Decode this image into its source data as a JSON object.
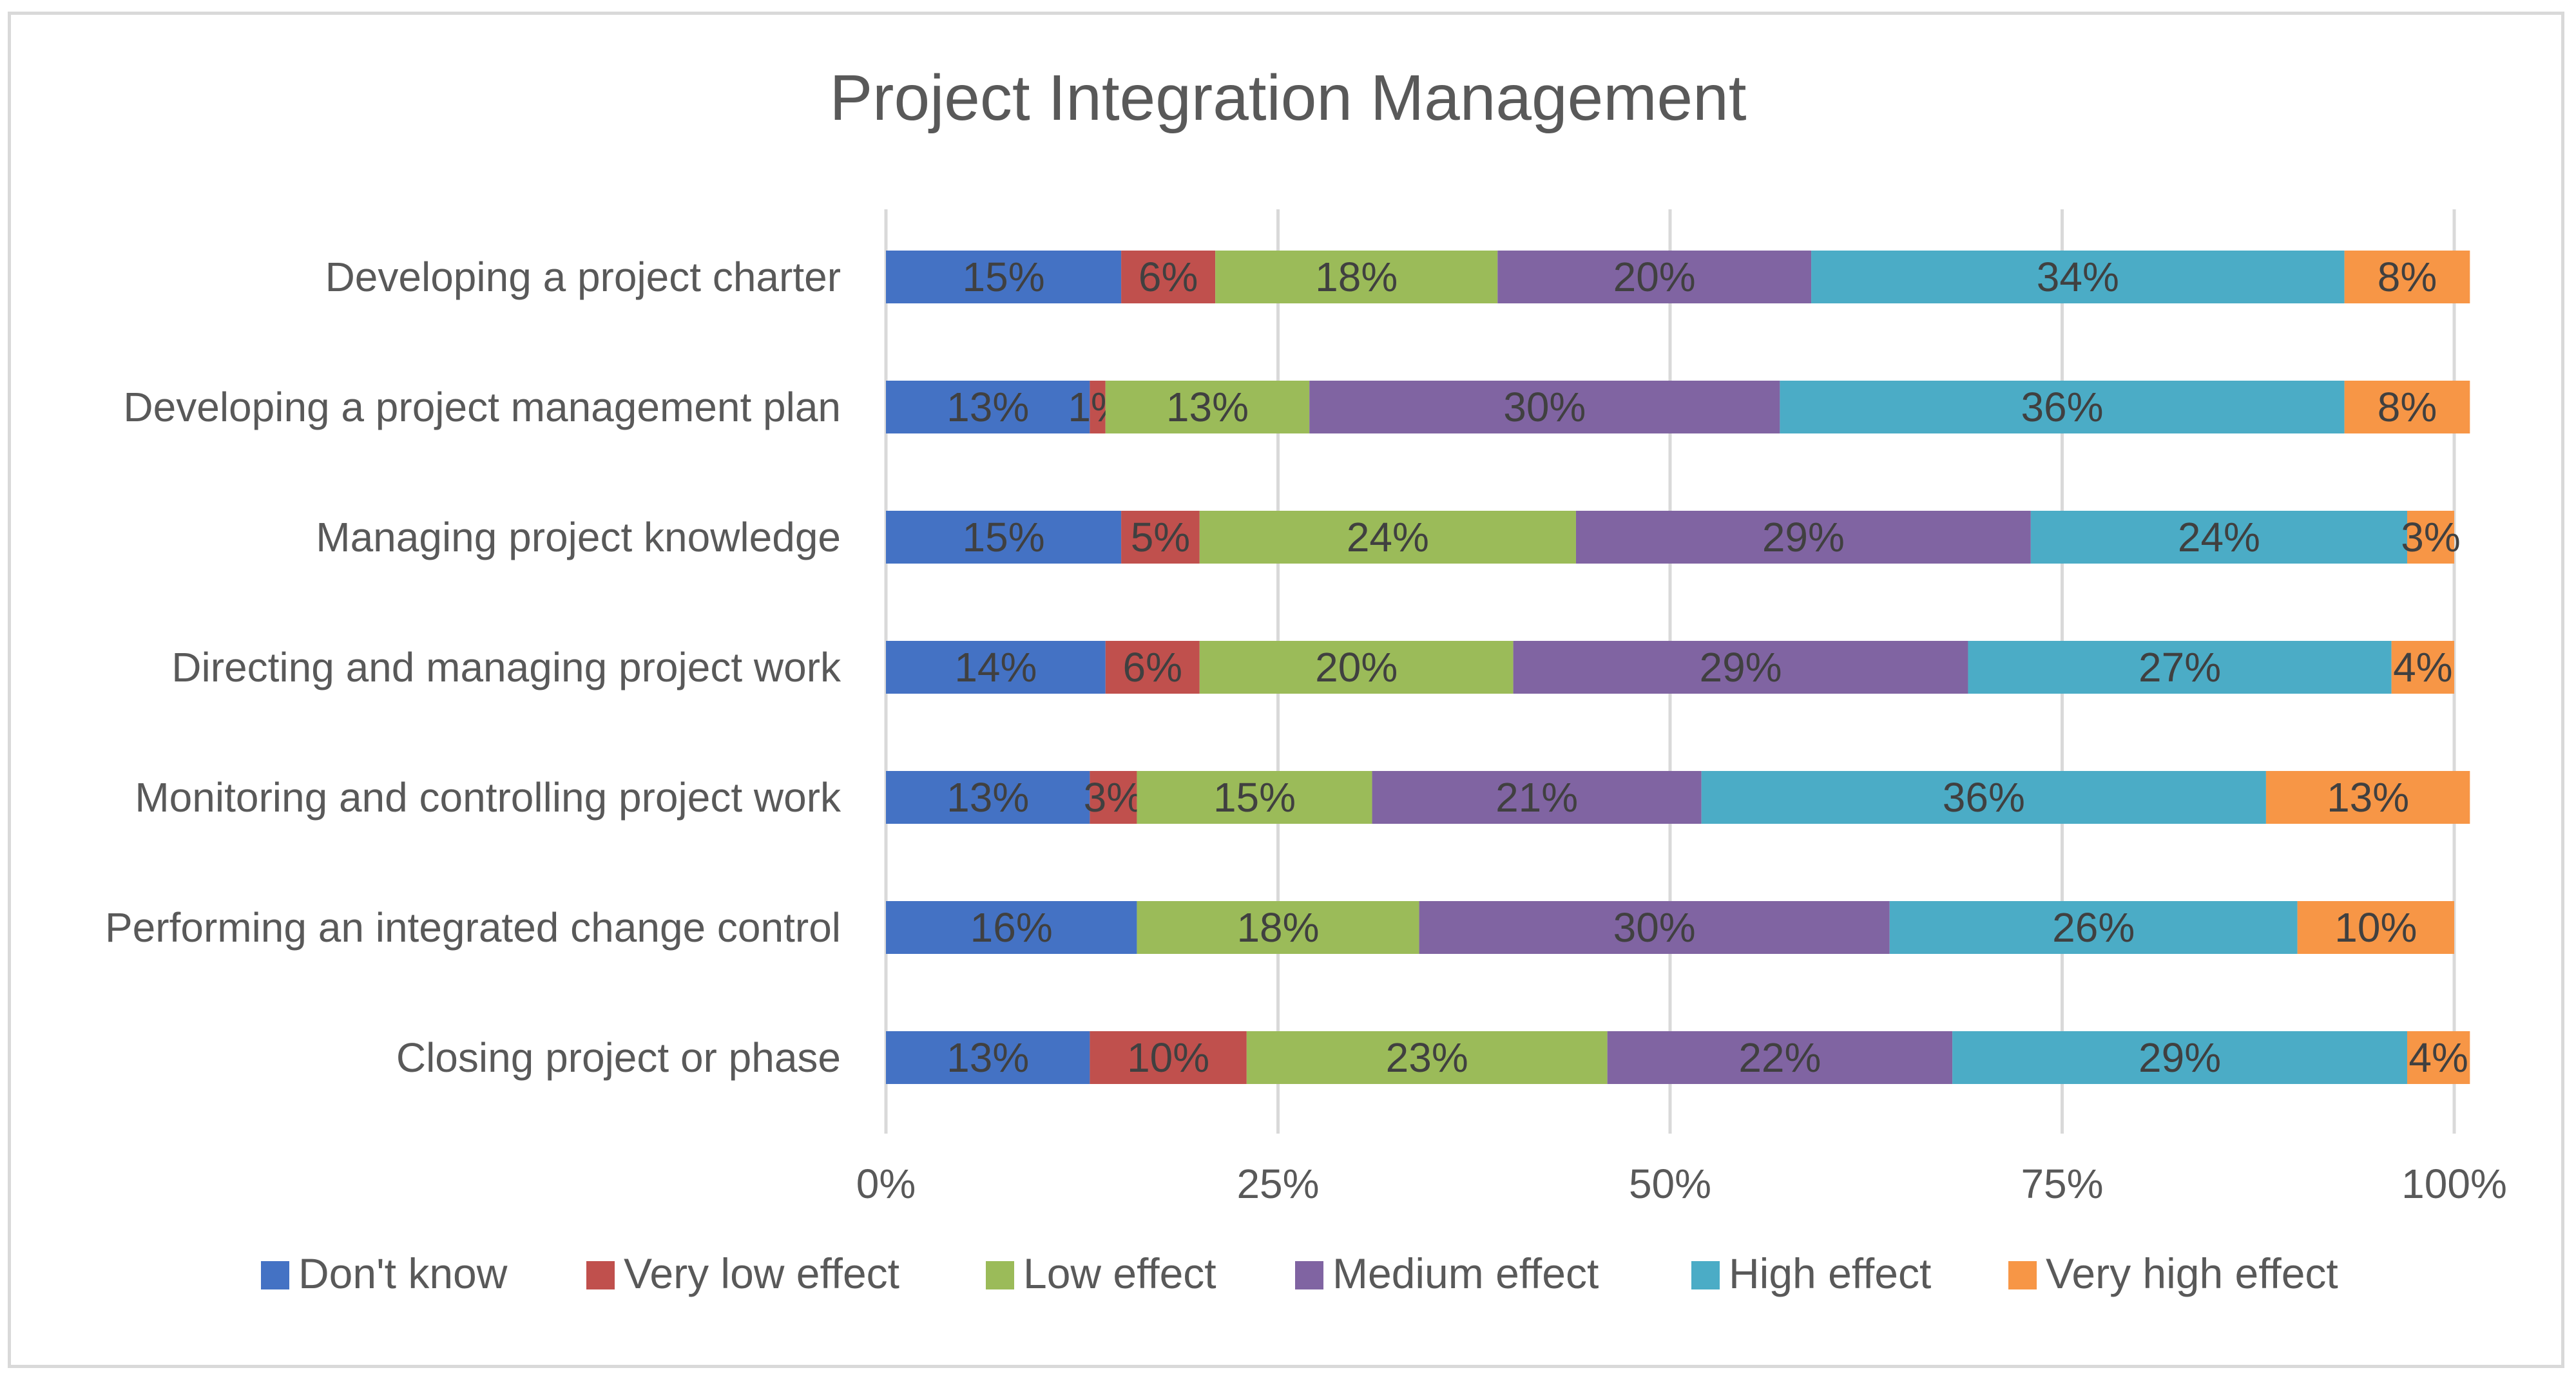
{
  "chart_data": {
    "type": "bar",
    "orientation": "horizontal",
    "stacked": "percent",
    "title": "Project Integration Management",
    "categories": [
      "Developing a project charter",
      "Developing a project management plan",
      "Managing project knowledge",
      "Directing and managing project work",
      "Monitoring and controlling project work",
      "Performing an integrated change control",
      "Closing project or phase"
    ],
    "series": [
      {
        "name": "Don't know",
        "color": "#4472c4",
        "values": [
          15,
          13,
          15,
          14,
          13,
          16,
          13
        ]
      },
      {
        "name": "Very low effect",
        "color": "#c0504d",
        "values": [
          6,
          1,
          5,
          6,
          3,
          0,
          10
        ]
      },
      {
        "name": "Low effect",
        "color": "#9bbb59",
        "values": [
          18,
          13,
          24,
          20,
          15,
          18,
          23
        ]
      },
      {
        "name": "Medium effect",
        "color": "#8064a2",
        "values": [
          20,
          30,
          29,
          29,
          21,
          30,
          22
        ]
      },
      {
        "name": "High effect",
        "color": "#4bacc6",
        "values": [
          34,
          36,
          24,
          27,
          36,
          26,
          29
        ]
      },
      {
        "name": "Very high effect",
        "color": "#f79646",
        "values": [
          8,
          8,
          3,
          4,
          13,
          10,
          4
        ]
      }
    ],
    "xticks": [
      "0%",
      "25%",
      "50%",
      "75%",
      "100%"
    ],
    "xlim": [
      0,
      100
    ],
    "grid": true,
    "legend": "bottom"
  }
}
